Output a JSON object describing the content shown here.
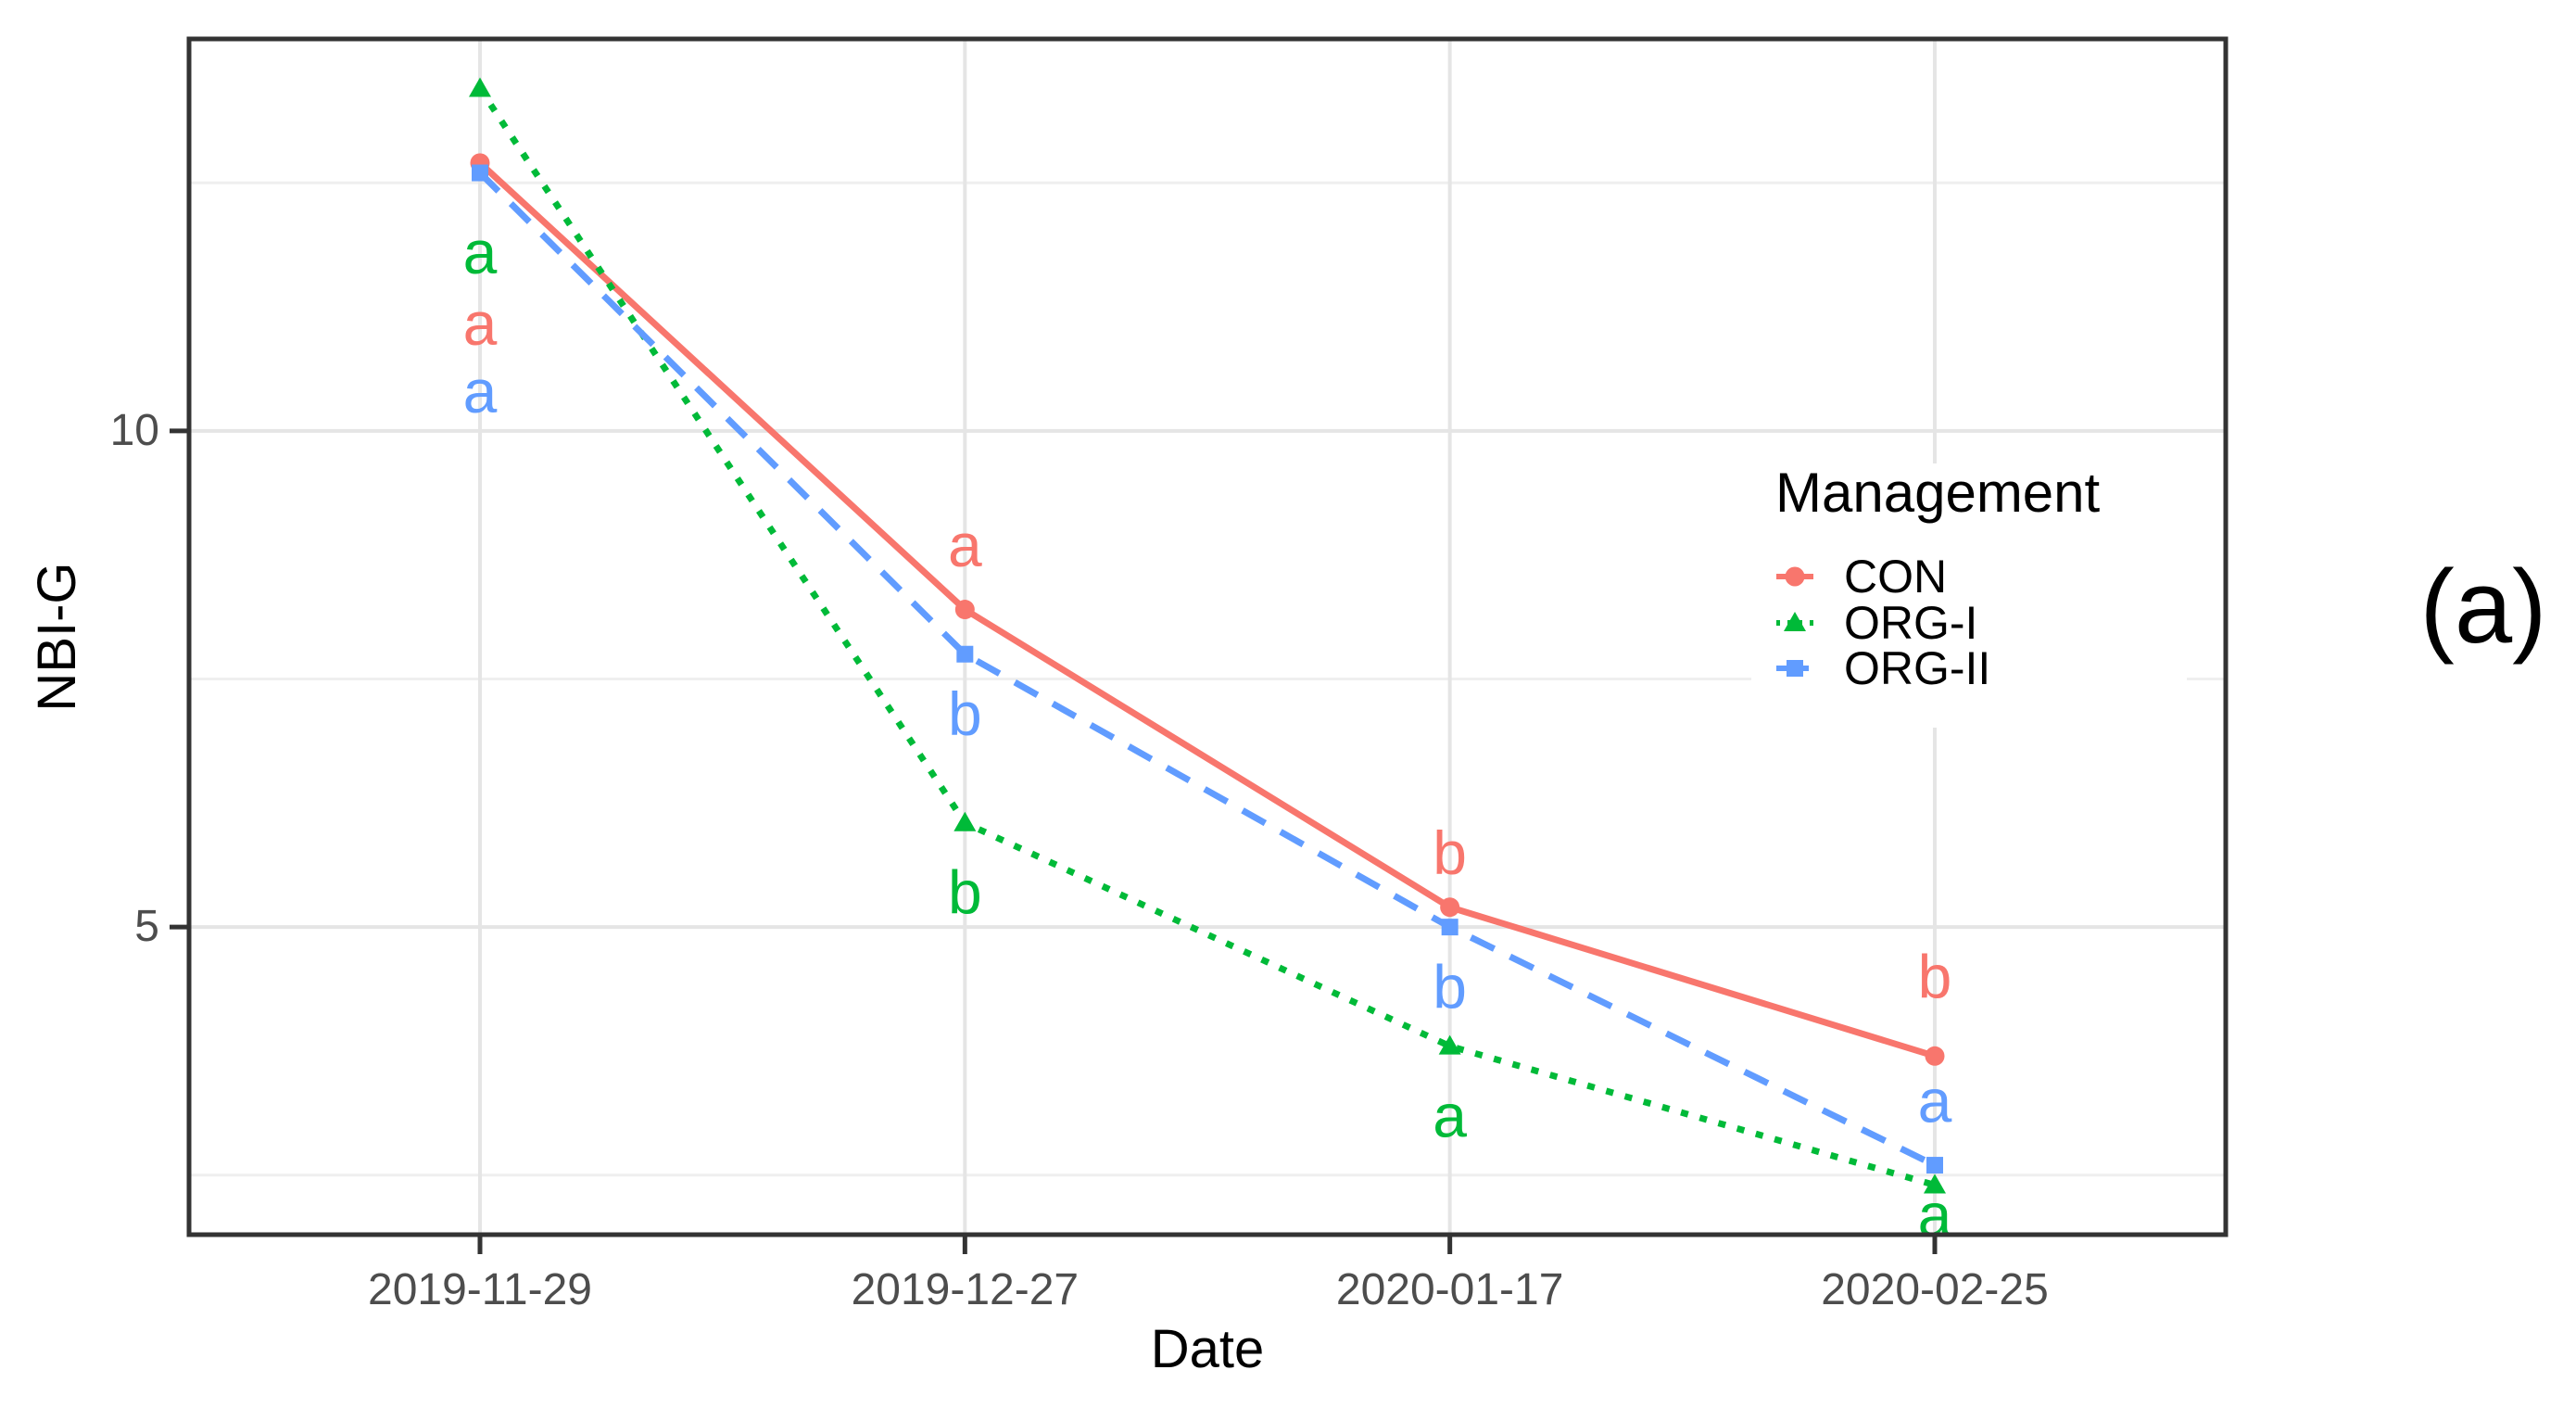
{
  "figure": {
    "panel_label": "(a)",
    "background": "#ffffff"
  },
  "chart_data": {
    "type": "line",
    "title": "",
    "xlabel": "Date",
    "ylabel": "NBI-G",
    "categories": [
      "2019-11-29",
      "2019-12-27",
      "2020-01-17",
      "2020-02-25"
    ],
    "ylim": [
      1.9,
      13.95
    ],
    "yticks": [
      5,
      10
    ],
    "yticks_minor": [
      2.5,
      7.5,
      12.5
    ],
    "grid": "horizontal major+minor gray lines, vertical major line per category, white panel, dark panel border",
    "legend": {
      "title": "Management",
      "position": "inside top-right",
      "entries": [
        {
          "label": "CON",
          "marker": "circle",
          "linestyle": "solid",
          "color": "#F8766D"
        },
        {
          "label": "ORG-I",
          "marker": "triangle",
          "linestyle": "dotted",
          "color": "#00BA38"
        },
        {
          "label": "ORG-II",
          "marker": "square",
          "linestyle": "dashed",
          "color": "#619CFF"
        }
      ]
    },
    "series": [
      {
        "name": "CON",
        "color": "#F8766D",
        "marker": "circle",
        "linestyle": "solid",
        "values": [
          12.7,
          8.2,
          5.2,
          3.7
        ]
      },
      {
        "name": "ORG-I",
        "color": "#00BA38",
        "marker": "triangle",
        "linestyle": "dotted",
        "values": [
          13.45,
          6.05,
          3.8,
          2.4
        ]
      },
      {
        "name": "ORG-II",
        "color": "#619CFF",
        "marker": "square",
        "linestyle": "dashed",
        "values": [
          12.6,
          7.75,
          5.0,
          2.6
        ]
      }
    ],
    "sig_letters": [
      {
        "category_index": 0,
        "series": "ORG-I",
        "text": "a",
        "value": 11.8
      },
      {
        "category_index": 0,
        "series": "CON",
        "text": "a",
        "value": 11.08
      },
      {
        "category_index": 0,
        "series": "ORG-II",
        "text": "a",
        "value": 10.4
      },
      {
        "category_index": 1,
        "series": "CON",
        "text": "a",
        "value": 8.85
      },
      {
        "category_index": 1,
        "series": "ORG-II",
        "text": "b",
        "value": 7.15
      },
      {
        "category_index": 1,
        "series": "ORG-I",
        "text": "b",
        "value": 5.35
      },
      {
        "category_index": 2,
        "series": "CON",
        "text": "b",
        "value": 5.75
      },
      {
        "category_index": 2,
        "series": "ORG-II",
        "text": "b",
        "value": 4.4
      },
      {
        "category_index": 2,
        "series": "ORG-I",
        "text": "a",
        "value": 3.1
      },
      {
        "category_index": 3,
        "series": "CON",
        "text": "b",
        "value": 4.5
      },
      {
        "category_index": 3,
        "series": "ORG-II",
        "text": "a",
        "value": 3.25
      },
      {
        "category_index": 3,
        "series": "ORG-I",
        "text": "a",
        "value": 2.1
      }
    ],
    "colors": {
      "axis_text": "#4d4d4d",
      "axis_title": "#000000",
      "grid_major": "#e5e5e5",
      "grid_minor": "#efefef",
      "panel_border": "#333333",
      "tick_mark": "#333333"
    }
  }
}
